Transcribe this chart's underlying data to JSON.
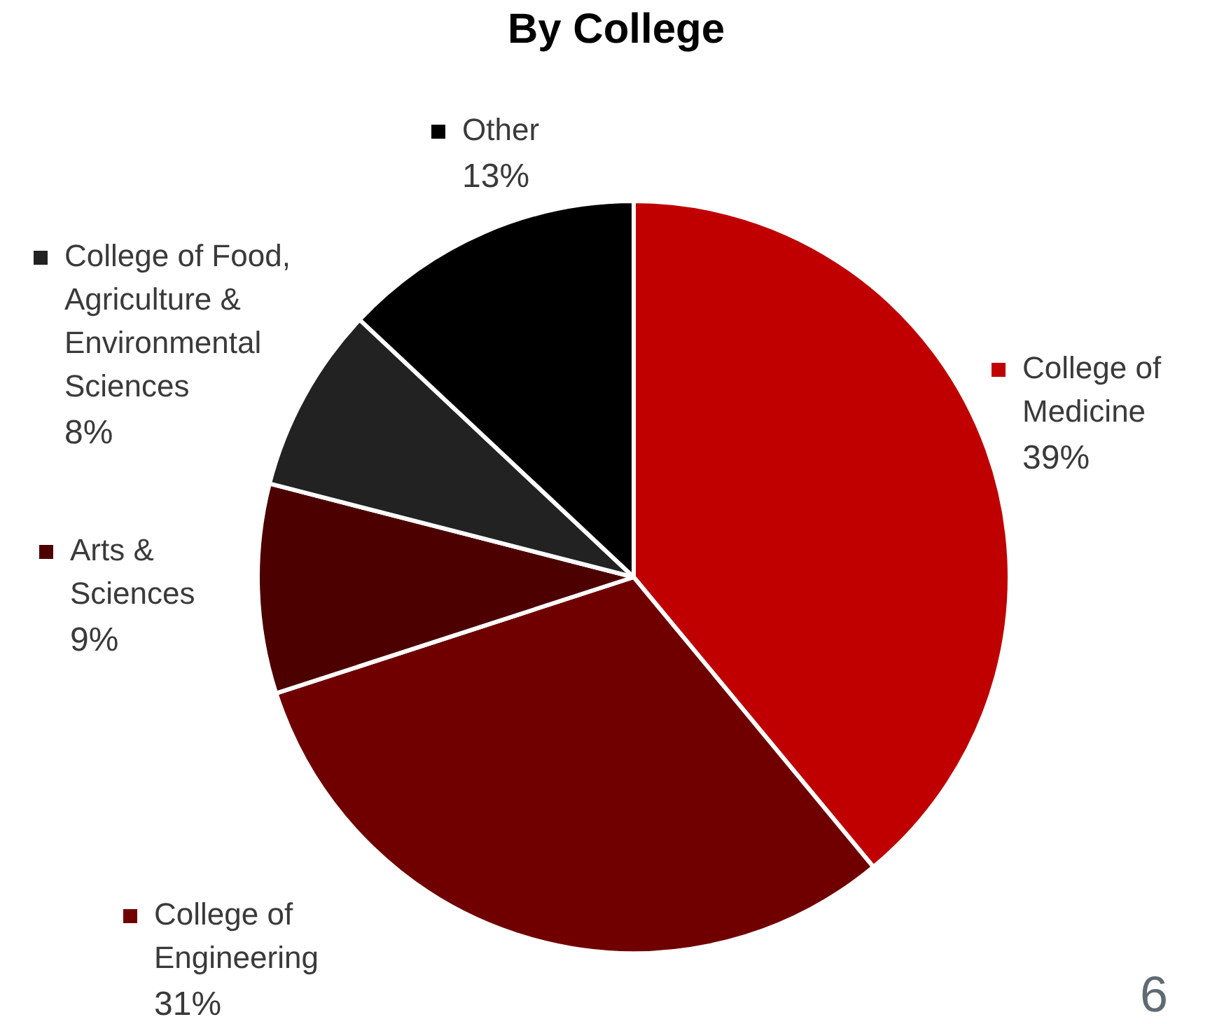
{
  "chart_data": {
    "type": "pie",
    "title": "By College",
    "categories": [
      "College of Medicine",
      "College of Engineering",
      "Arts & Sciences",
      "College of Food, Agriculture & Environmental Sciences",
      "Other"
    ],
    "values": [
      39,
      31,
      9,
      8,
      13
    ],
    "value_labels": [
      "39%",
      "31%",
      "9%",
      "8%",
      "13%"
    ],
    "colors": [
      "#c00000",
      "#700000",
      "#4d0000",
      "#222222",
      "#000000"
    ],
    "legend": "left",
    "annotations": [
      "6"
    ]
  }
}
